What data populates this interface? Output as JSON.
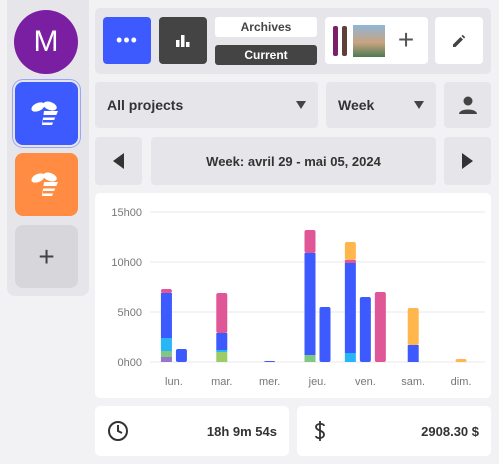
{
  "sidebar": {
    "avatar_letter": "M",
    "add_label": "+"
  },
  "toolbar": {
    "menu_icon": "more-horizontal-icon",
    "stats_icon": "bar-chart-icon",
    "archives_label": "Archives",
    "current_label": "Current",
    "add_member_label": "+",
    "edit_icon": "pencil-icon"
  },
  "filters": {
    "project": "All projects",
    "period": "Week",
    "user_icon": "person-icon"
  },
  "week_nav": {
    "label": "Week: avril 29 - mai 05, 2024",
    "prev_icon": "caret-left-icon",
    "next_icon": "caret-right-icon"
  },
  "chart_data": {
    "type": "bar",
    "stacked": true,
    "y_tick_labels": [
      "15h00",
      "10h00",
      "5h00",
      "0h00"
    ],
    "ylim": [
      0,
      15
    ],
    "y_unit": "hours",
    "categories": [
      "lun.",
      "mar.",
      "mer.",
      "jeu.",
      "ven.",
      "sam.",
      "dim."
    ],
    "grid": true,
    "bars": [
      {
        "day": "lun.",
        "segments": [
          {
            "color": "#9575cd",
            "value": 0.5
          },
          {
            "color": "#81c784",
            "value": 0.6
          },
          {
            "color": "#29b6f6",
            "value": 1.3
          },
          {
            "color": "#3d5afe",
            "value": 4.5
          },
          {
            "color": "#e05797",
            "value": 0.4
          }
        ]
      },
      {
        "day": "lun.",
        "segments": [
          {
            "color": "#3d5afe",
            "value": 1.3
          }
        ]
      },
      {
        "day": "mar.",
        "segments": [
          {
            "color": "#9ccc65",
            "value": 1.0
          },
          {
            "color": "#29b6f6",
            "value": 0.2
          },
          {
            "color": "#3d5afe",
            "value": 1.7
          },
          {
            "color": "#e05797",
            "value": 4.0
          }
        ]
      },
      {
        "day": "mer.",
        "segments": [
          {
            "color": "#3d5afe",
            "value": 0.1
          }
        ]
      },
      {
        "day": "jeu.",
        "segments": [
          {
            "color": "#81c784",
            "value": 0.7
          },
          {
            "color": "#3d5afe",
            "value": 10.2
          },
          {
            "color": "#e05797",
            "value": 2.3
          }
        ]
      },
      {
        "day": "jeu.",
        "segments": [
          {
            "color": "#3d5afe",
            "value": 5.5
          }
        ]
      },
      {
        "day": "ven.",
        "segments": [
          {
            "color": "#29b6f6",
            "value": 0.9
          },
          {
            "color": "#3d5afe",
            "value": 9.0
          },
          {
            "color": "#e05797",
            "value": 0.3
          },
          {
            "color": "#ffb74d",
            "value": 1.8
          }
        ]
      },
      {
        "day": "ven.",
        "segments": [
          {
            "color": "#3d5afe",
            "value": 6.5
          }
        ]
      },
      {
        "day": "ven.",
        "segments": [
          {
            "color": "#e05797",
            "value": 7.0
          }
        ]
      },
      {
        "day": "sam.",
        "segments": [
          {
            "color": "#3d5afe",
            "value": 1.7
          },
          {
            "color": "#ffb74d",
            "value": 3.7
          }
        ]
      },
      {
        "day": "dim.",
        "segments": [
          {
            "color": "#ffb74d",
            "value": 0.3
          }
        ]
      }
    ]
  },
  "totals": {
    "time": "18h 9m 54s",
    "time_icon": "clock-icon",
    "money": "2908.30 $",
    "money_icon": "dollar-icon"
  }
}
